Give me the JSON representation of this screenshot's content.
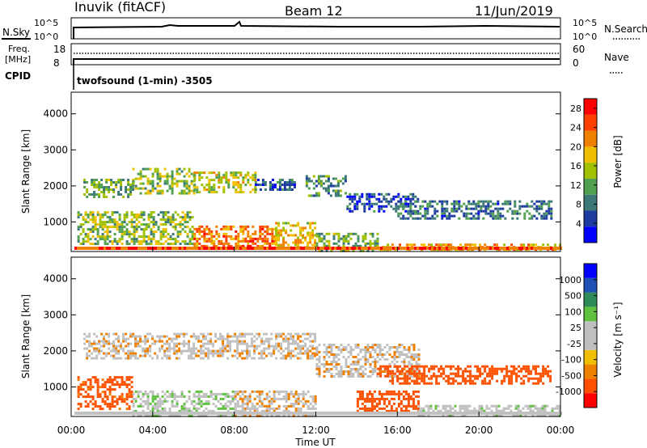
{
  "header": {
    "station": "Inuvik (fitACF)",
    "beam": "Beam 12",
    "date": "11/Jun/2019"
  },
  "aux_panels": {
    "nsky_label": "N.Sky",
    "nsky_ticks": [
      "10^5",
      "10^0"
    ],
    "nsearch_label": "N.Search",
    "nsearch_ticks": [
      "10^5",
      "10^0"
    ],
    "freq_label": "Freq.",
    "freq_unit": "[MHz]",
    "freq_ticks": [
      "18",
      "8"
    ],
    "nave_label": "Nave",
    "nave_ticks": [
      "60",
      "0"
    ],
    "cpid_label": "CPID",
    "cpid_text": "twofsound (1-min) -3505"
  },
  "colors": {
    "power": [
      "#0000ff",
      "#1e3ca0",
      "#3c7878",
      "#50a050",
      "#a0c000",
      "#f0c000",
      "#f08000",
      "#ff4000",
      "#ff0000"
    ],
    "velocity": [
      "#ff0000",
      "#ff5000",
      "#f08000",
      "#f0c000",
      "#c0c0c0",
      "#c0c0c0",
      "#60c040",
      "#2e8b57",
      "#1e50b4",
      "#0000ff"
    ]
  },
  "chart_data": [
    {
      "type": "heatmap",
      "title": "Power",
      "ylabel": "Slant Range [km]",
      "xlabel": "Time UT",
      "x_ticks": [
        "00:00",
        "04:00",
        "08:00",
        "12:00",
        "16:00",
        "20:00",
        "00:00"
      ],
      "xlim_hours": [
        0,
        24
      ],
      "y_ticks": [
        "1000",
        "2000",
        "3000",
        "4000"
      ],
      "ylim": [
        180,
        4600
      ],
      "colorbar": {
        "label": "Power [dB]",
        "ticks": [
          "4",
          "8",
          "12",
          "16",
          "20",
          "24",
          "28"
        ],
        "range": [
          0,
          30
        ]
      },
      "regions": [
        {
          "t": [
            0.6,
            3.0
          ],
          "range": [
            1700,
            2200
          ],
          "value": 12
        },
        {
          "t": [
            3.0,
            6.0
          ],
          "range": [
            1800,
            2500
          ],
          "value": 14
        },
        {
          "t": [
            6.0,
            9.0
          ],
          "range": [
            1800,
            2400
          ],
          "value": 16
        },
        {
          "t": [
            9.0,
            11.0
          ],
          "range": [
            1900,
            2200
          ],
          "value": 6
        },
        {
          "t": [
            11.5,
            13.5
          ],
          "range": [
            1700,
            2300
          ],
          "value": 10
        },
        {
          "t": [
            13.5,
            17.0
          ],
          "range": [
            1300,
            1800
          ],
          "value": 6
        },
        {
          "t": [
            16.0,
            23.5
          ],
          "range": [
            1100,
            1600
          ],
          "value": 8
        },
        {
          "t": [
            0.3,
            6.0
          ],
          "range": [
            400,
            1300
          ],
          "value": 14
        },
        {
          "t": [
            6.0,
            10.0
          ],
          "range": [
            300,
            900
          ],
          "value": 22
        },
        {
          "t": [
            10.0,
            12.0
          ],
          "range": [
            300,
            1000
          ],
          "value": 18
        },
        {
          "t": [
            12.0,
            15.0
          ],
          "range": [
            200,
            700
          ],
          "value": 12
        },
        {
          "t": [
            15.0,
            24.0
          ],
          "range": [
            200,
            400
          ],
          "value": 20
        }
      ]
    },
    {
      "type": "heatmap",
      "title": "Velocity",
      "ylabel": "Slant Range [km]",
      "xlabel": "Time UT",
      "x_ticks": [
        "00:00",
        "04:00",
        "08:00",
        "12:00",
        "16:00",
        "20:00",
        "00:00"
      ],
      "xlim_hours": [
        0,
        24
      ],
      "y_ticks": [
        "1000",
        "2000",
        "3000",
        "4000"
      ],
      "ylim": [
        180,
        4600
      ],
      "colorbar": {
        "label": "Velocity [m s⁻¹]",
        "ticks": [
          "1000",
          "500",
          "100",
          "25",
          "-25",
          "-100",
          "-500",
          "-1000"
        ]
      },
      "regions": [
        {
          "t": [
            0.6,
            12.0
          ],
          "range": [
            1800,
            2500
          ],
          "value": 0
        },
        {
          "t": [
            12.0,
            17.0
          ],
          "range": [
            1300,
            2200
          ],
          "value": 0
        },
        {
          "t": [
            15.0,
            23.5
          ],
          "range": [
            1100,
            1600
          ],
          "value": -300
        },
        {
          "t": [
            0.3,
            3.0
          ],
          "range": [
            400,
            1300
          ],
          "value": -150
        },
        {
          "t": [
            3.0,
            8.0
          ],
          "range": [
            200,
            900
          ],
          "value": 80
        },
        {
          "t": [
            8.0,
            12.0
          ],
          "range": [
            200,
            900
          ],
          "value": 0
        },
        {
          "t": [
            14.0,
            17.0
          ],
          "range": [
            300,
            900
          ],
          "value": -200
        },
        {
          "t": [
            17.0,
            24.0
          ],
          "range": [
            200,
            500
          ],
          "value": 60
        }
      ]
    }
  ]
}
